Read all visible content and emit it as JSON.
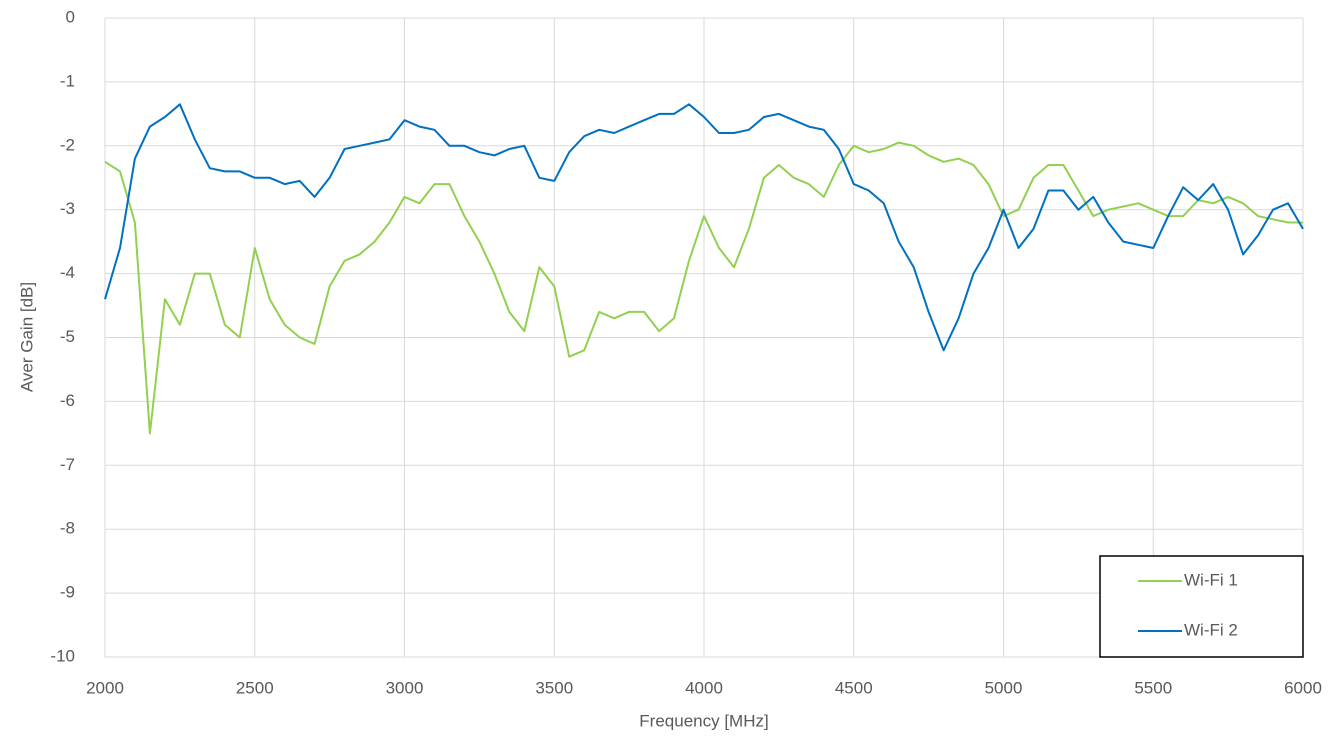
{
  "chart_data": {
    "type": "line",
    "x_label": "Frequency [MHz]",
    "y_label": "Aver Gain [dB]",
    "x": [
      2000,
      2050,
      2100,
      2150,
      2200,
      2250,
      2300,
      2350,
      2400,
      2450,
      2500,
      2550,
      2600,
      2650,
      2700,
      2750,
      2800,
      2850,
      2900,
      2950,
      3000,
      3050,
      3100,
      3150,
      3200,
      3250,
      3300,
      3350,
      3400,
      3450,
      3500,
      3550,
      3600,
      3650,
      3700,
      3750,
      3800,
      3850,
      3900,
      3950,
      4000,
      4050,
      4100,
      4150,
      4200,
      4250,
      4300,
      4350,
      4400,
      4450,
      4500,
      4550,
      4600,
      4650,
      4700,
      4750,
      4800,
      4850,
      4900,
      4950,
      5000,
      5050,
      5100,
      5150,
      5200,
      5250,
      5300,
      5350,
      5400,
      5450,
      5500,
      5550,
      5600,
      5650,
      5700,
      5750,
      5800,
      5850,
      5900,
      5950,
      6000
    ],
    "series": [
      {
        "name": "Wi-Fi 1",
        "color": "#92d050",
        "values": [
          -2.25,
          -2.4,
          -3.2,
          -6.5,
          -4.4,
          -4.8,
          -4.0,
          -4.0,
          -4.8,
          -5.0,
          -3.6,
          -4.4,
          -4.8,
          -5.0,
          -5.1,
          -4.2,
          -3.8,
          -3.7,
          -3.5,
          -3.2,
          -2.8,
          -2.9,
          -2.6,
          -2.6,
          -3.1,
          -3.5,
          -4.0,
          -4.6,
          -4.9,
          -3.9,
          -4.2,
          -5.3,
          -5.2,
          -4.6,
          -4.7,
          -4.6,
          -4.6,
          -4.9,
          -4.7,
          -3.8,
          -3.1,
          -3.6,
          -3.9,
          -3.3,
          -2.5,
          -2.3,
          -2.5,
          -2.6,
          -2.8,
          -2.3,
          -2.0,
          -2.1,
          -2.05,
          -1.95,
          -2.0,
          -2.15,
          -2.25,
          -2.2,
          -2.3,
          -2.6,
          -3.1,
          -3.0,
          -2.5,
          -2.3,
          -2.3,
          -2.7,
          -3.1,
          -3.0,
          -2.95,
          -2.9,
          -3.0,
          -3.1,
          -3.1,
          -2.85,
          -2.9,
          -2.8,
          -2.9,
          -3.1,
          -3.15,
          -3.2,
          -3.2
        ]
      },
      {
        "name": "Wi-Fi 2",
        "color": "#0070c0",
        "values": [
          -4.4,
          -3.6,
          -2.2,
          -1.7,
          -1.55,
          -1.35,
          -1.9,
          -2.35,
          -2.4,
          -2.4,
          -2.5,
          -2.5,
          -2.6,
          -2.55,
          -2.8,
          -2.5,
          -2.05,
          -2.0,
          -1.95,
          -1.9,
          -1.6,
          -1.7,
          -1.75,
          -2.0,
          -2.0,
          -2.1,
          -2.15,
          -2.05,
          -2.0,
          -2.5,
          -2.55,
          -2.1,
          -1.85,
          -1.75,
          -1.8,
          -1.7,
          -1.6,
          -1.5,
          -1.5,
          -1.35,
          -1.55,
          -1.8,
          -1.8,
          -1.75,
          -1.55,
          -1.5,
          -1.6,
          -1.7,
          -1.75,
          -2.05,
          -2.6,
          -2.7,
          -2.9,
          -3.5,
          -3.9,
          -4.6,
          -5.2,
          -4.7,
          -4.0,
          -3.6,
          -3.0,
          -3.6,
          -3.3,
          -2.7,
          -2.7,
          -3.0,
          -2.8,
          -3.2,
          -3.5,
          -3.55,
          -3.6,
          -3.1,
          -2.65,
          -2.85,
          -2.6,
          -3.0,
          -3.7,
          -3.4,
          -3.0,
          -2.9,
          -3.3
        ]
      }
    ],
    "xlim": [
      2000,
      6000
    ],
    "xticks": [
      2000,
      2500,
      3000,
      3500,
      4000,
      4500,
      5000,
      5500,
      6000
    ],
    "ylim": [
      -10,
      0
    ],
    "yticks": [
      0,
      -1,
      -2,
      -3,
      -4,
      -5,
      -6,
      -7,
      -8,
      -9,
      -10
    ],
    "grid": true,
    "legend": "bottom-right"
  }
}
